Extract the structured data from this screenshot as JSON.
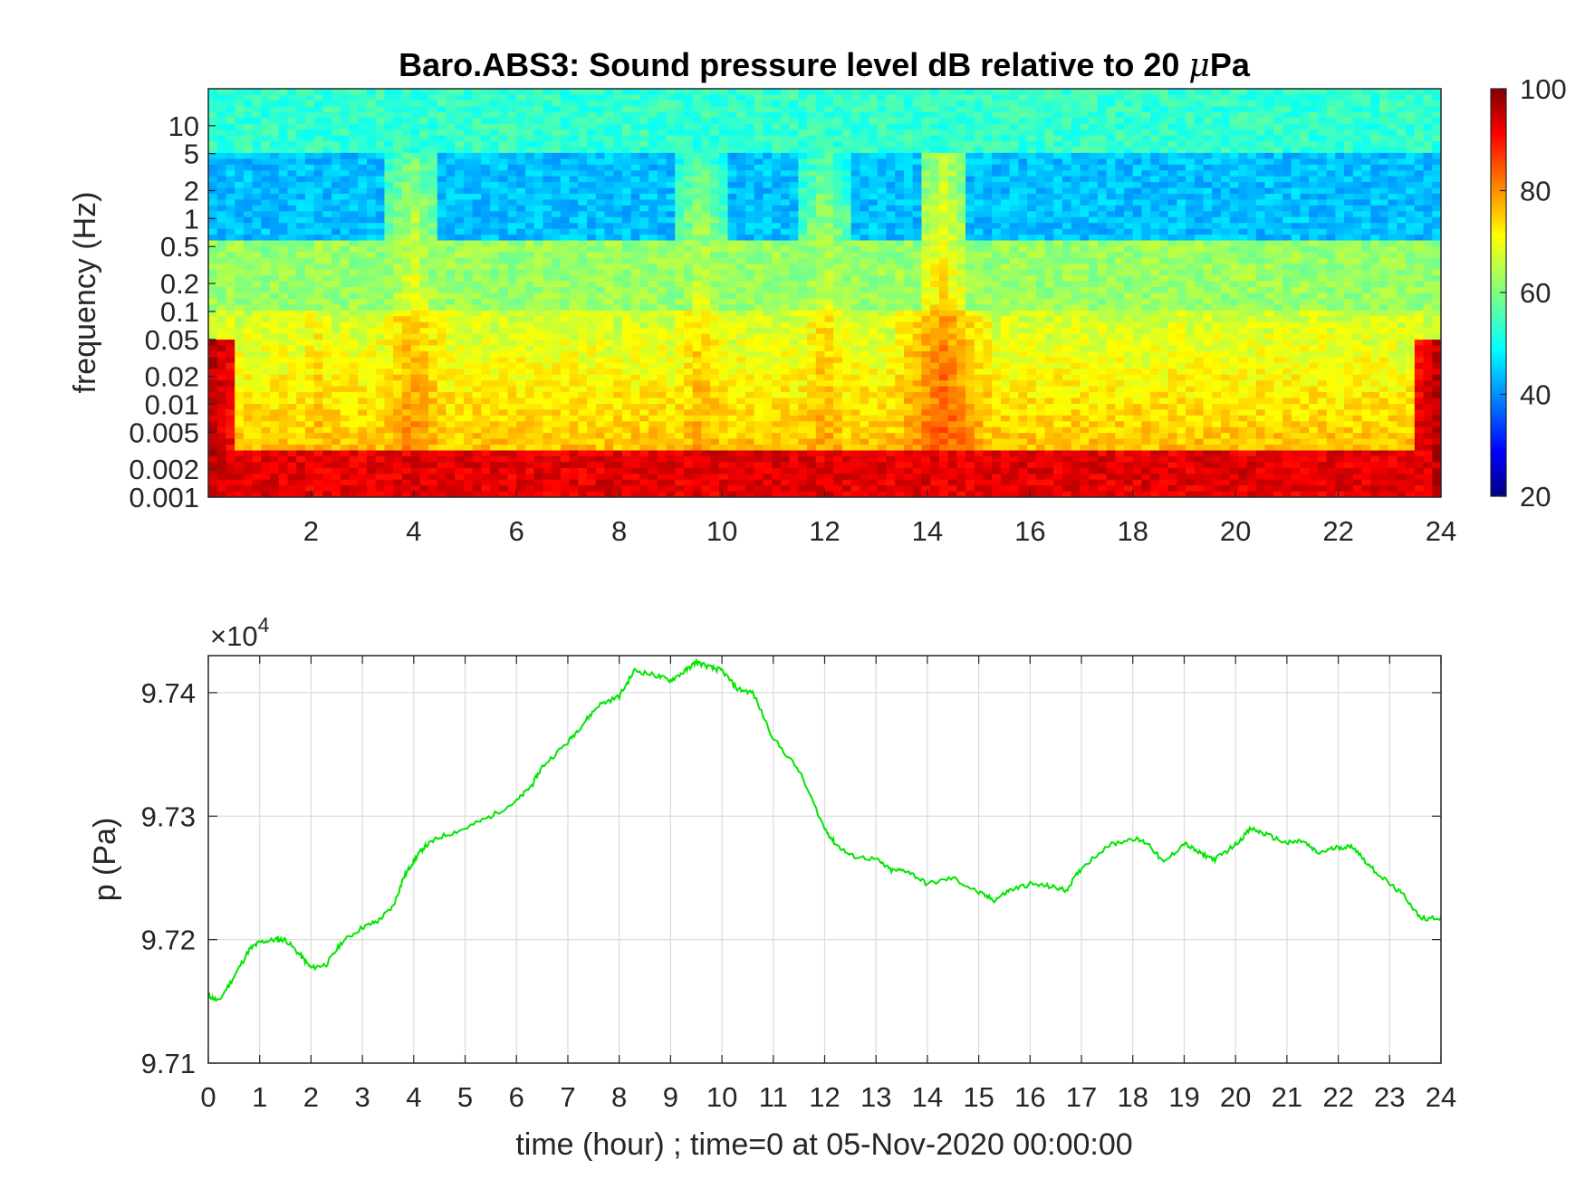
{
  "chart_data": [
    {
      "type": "heatmap",
      "title_main": "Baro.ABS3: Sound pressure level dB relative to 20 ",
      "title_mu": "μ",
      "title_unit": "Pa",
      "ylabel": "frequency (Hz)",
      "xlabel": "",
      "y_scale": "log",
      "ylim": [
        0.001,
        25
      ],
      "xlim": [
        0,
        24
      ],
      "x_ticks": [
        "2",
        "4",
        "6",
        "8",
        "10",
        "12",
        "14",
        "16",
        "18",
        "20",
        "22",
        "24"
      ],
      "x_tick_values": [
        2,
        4,
        6,
        8,
        10,
        12,
        14,
        16,
        18,
        20,
        22,
        24
      ],
      "y_ticks": [
        "10",
        "5",
        "2",
        "1",
        "0.5",
        "0.2",
        "0.1",
        "0.05",
        "0.02",
        "0.01",
        "0.005",
        "0.002",
        "0.001"
      ],
      "y_tick_values": [
        10,
        5,
        2,
        1,
        0.5,
        0.2,
        0.1,
        0.05,
        0.02,
        0.01,
        0.005,
        0.002,
        0.001
      ],
      "colorbar": {
        "colormap": "jet",
        "clim": [
          20,
          100
        ],
        "ticks": [
          "100",
          "80",
          "60",
          "40",
          "20"
        ],
        "tick_values": [
          100,
          80,
          60,
          40,
          20
        ]
      },
      "spl_bands_db": [
        {
          "f_low": 0.001,
          "f_high": 0.003,
          "level": 92
        },
        {
          "f_low": 0.003,
          "f_high": 0.1,
          "level": 66
        },
        {
          "f_low": 0.1,
          "f_high": 0.6,
          "level": 62
        },
        {
          "f_low": 0.6,
          "f_high": 5,
          "level": 45
        },
        {
          "f_low": 5,
          "f_high": 25,
          "level": 54
        }
      ],
      "activity_bursts": [
        {
          "t": 1.2,
          "level": 68
        },
        {
          "t": 2.1,
          "level": 74
        },
        {
          "t": 4.0,
          "level": 78
        },
        {
          "t": 9.6,
          "level": 76
        },
        {
          "t": 12.0,
          "level": 76
        },
        {
          "t": 14.3,
          "level": 82
        },
        {
          "t": 18.9,
          "level": 72
        }
      ]
    },
    {
      "type": "line",
      "exponent_base": "×10",
      "exponent_power": "4",
      "xlabel": "time (hour) ; time=0 at 05-Nov-2020 00:00:00",
      "ylabel": "p (Pa)",
      "xlim": [
        0,
        24
      ],
      "ylim": [
        97100,
        97430
      ],
      "grid": true,
      "line_color": "#00e600",
      "x_ticks": [
        "0",
        "1",
        "2",
        "3",
        "4",
        "5",
        "6",
        "7",
        "8",
        "9",
        "10",
        "11",
        "12",
        "13",
        "14",
        "15",
        "16",
        "17",
        "18",
        "19",
        "20",
        "21",
        "22",
        "23",
        "24"
      ],
      "x_tick_values": [
        0,
        1,
        2,
        3,
        4,
        5,
        6,
        7,
        8,
        9,
        10,
        11,
        12,
        13,
        14,
        15,
        16,
        17,
        18,
        19,
        20,
        21,
        22,
        23,
        24
      ],
      "y_ticks": [
        "9.71",
        "9.72",
        "9.73",
        "9.74"
      ],
      "y_tick_values": [
        97100,
        97200,
        97300,
        97400
      ],
      "series": [
        {
          "x": [
            0,
            0.2,
            0.5,
            0.8,
            1.0,
            1.3,
            1.5,
            1.8,
            2.0,
            2.3,
            2.6,
            3.0,
            3.3,
            3.6,
            3.8,
            4.0,
            4.2,
            4.5,
            5.0,
            5.5,
            6.0,
            6.3,
            6.5,
            7.0,
            7.3,
            7.6,
            8.0,
            8.3,
            8.7,
            9.0,
            9.3,
            9.5,
            9.8,
            10.0,
            10.3,
            10.6,
            11.0,
            11.5,
            12.0,
            12.2,
            12.5,
            13.0,
            13.3,
            13.6,
            14.0,
            14.5,
            15.0,
            15.3,
            15.6,
            16.0,
            16.4,
            16.7,
            17.0,
            17.5,
            18.0,
            18.3,
            18.6,
            19.0,
            19.3,
            19.6,
            20.0,
            20.3,
            20.6,
            21.0,
            21.3,
            21.6,
            22.0,
            22.3,
            22.6,
            23.0,
            23.3,
            23.6,
            24.0
          ],
          "y": [
            97155,
            97150,
            97170,
            97192,
            97198,
            97200,
            97200,
            97187,
            97177,
            97180,
            97198,
            97210,
            97215,
            97227,
            97250,
            97264,
            97275,
            97283,
            97290,
            97300,
            97312,
            97325,
            97340,
            97360,
            97375,
            97390,
            97397,
            97418,
            97414,
            97410,
            97418,
            97425,
            97420,
            97418,
            97403,
            97400,
            97363,
            97337,
            97290,
            97278,
            97268,
            97265,
            97256,
            97256,
            97245,
            97250,
            97238,
            97232,
            97240,
            97245,
            97243,
            97240,
            97258,
            97276,
            97282,
            97278,
            97262,
            97278,
            97270,
            97265,
            97277,
            97290,
            97285,
            97278,
            97280,
            97270,
            97275,
            97275,
            97260,
            97245,
            97235,
            97217,
            97218
          ]
        }
      ]
    }
  ]
}
